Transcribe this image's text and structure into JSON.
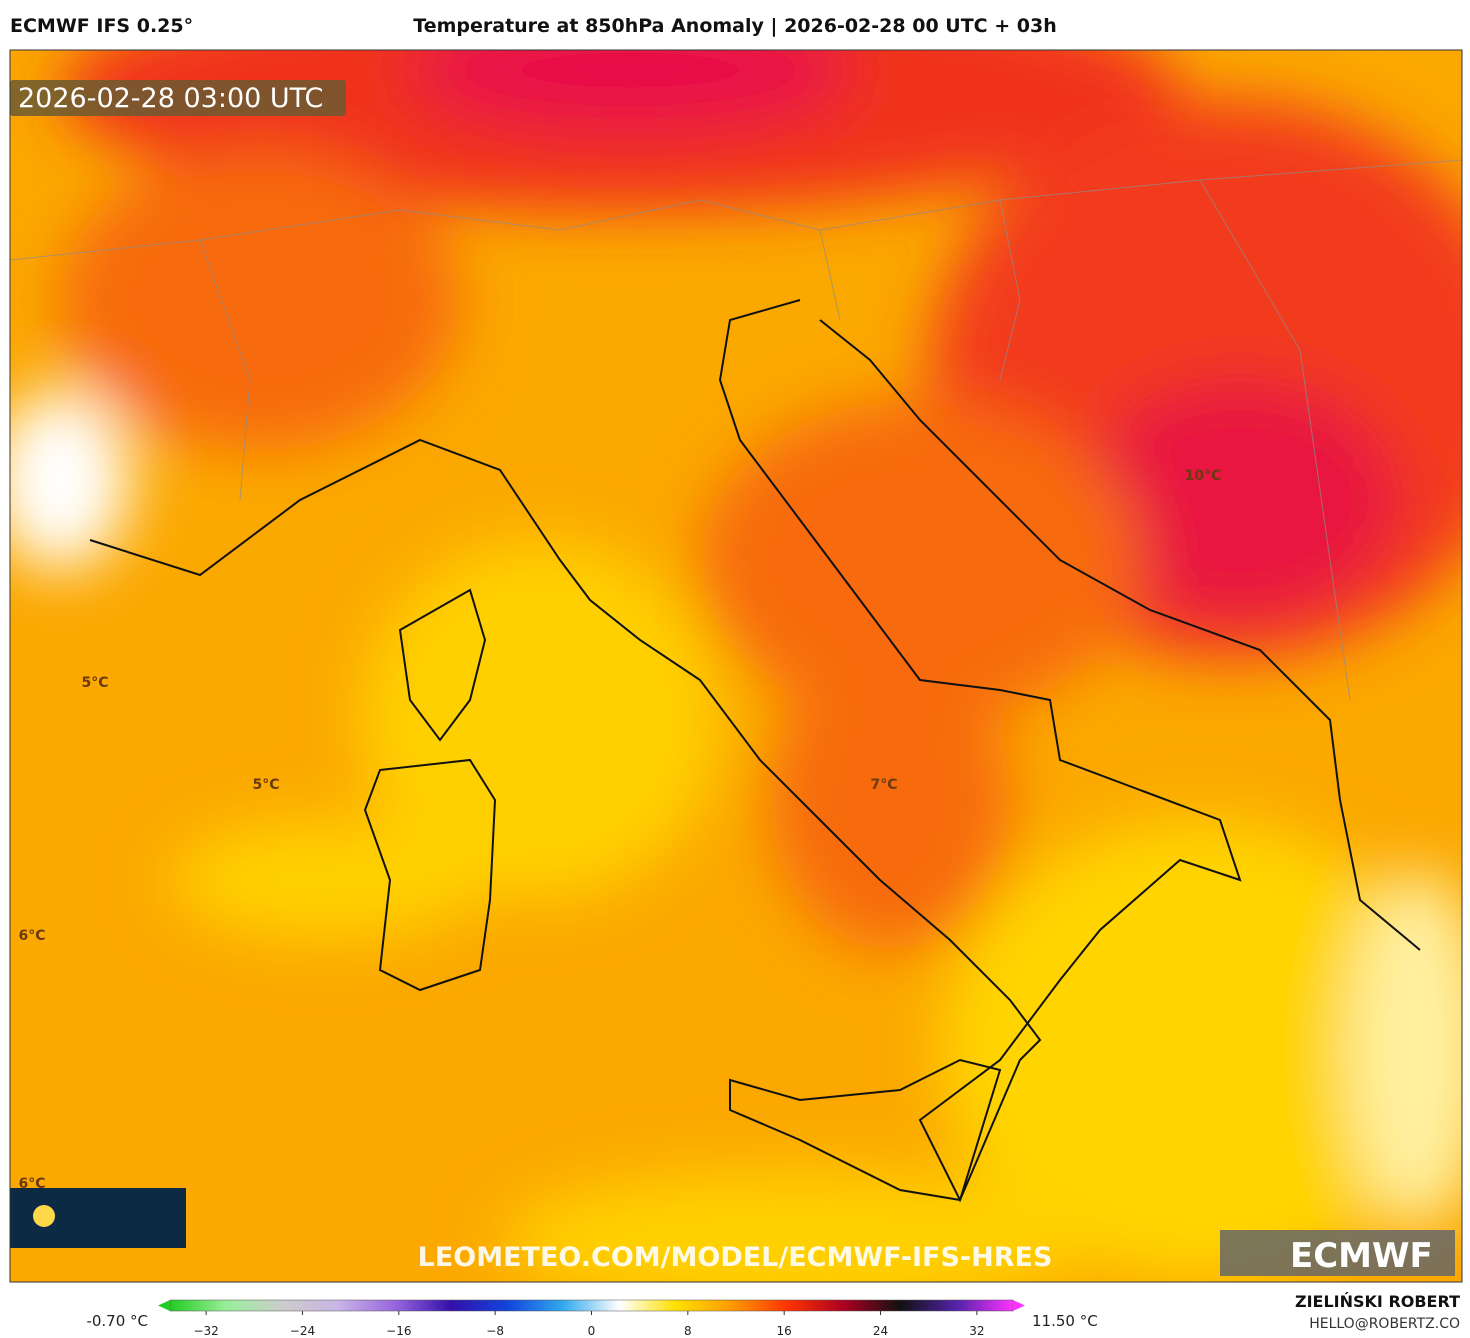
{
  "header": {
    "model": "ECMWF IFS 0.25°",
    "title": "Temperature at 850hPa Anomaly | 2026-02-28 00 UTC + 03h"
  },
  "map": {
    "timestamp": "2026-02-28 03:00 UTC",
    "labels": [
      "5°C",
      "5°C",
      "6°C",
      "6°C",
      "10°C",
      "7°C"
    ],
    "watermark": "LEOMETEO.COM/MODEL/ECMWF-IFS-HRES",
    "logo": "ECMWF"
  },
  "colorbar": {
    "min_label": "-0.70 °C",
    "max_label": "11.50 °C",
    "range": [
      -35,
      35
    ],
    "ticks": [
      {
        "value": -32,
        "label": "−32"
      },
      {
        "value": -24,
        "label": "−24"
      },
      {
        "value": -16,
        "label": "−16"
      },
      {
        "value": -8,
        "label": "−8"
      },
      0,
      8,
      16,
      24,
      32
    ],
    "colors": [
      "#22cc22",
      "#99ee99",
      "#cccccc",
      "#c8b4e6",
      "#9966dd",
      "#3311aa",
      "#1144dd",
      "#33aaee",
      "#ffffff",
      "#ffe000",
      "#ff9900",
      "#ff3300",
      "#aa0022",
      "#111111",
      "#5522aa",
      "#ff33ff"
    ]
  },
  "footer": {
    "author": "ZIELIŃSKI ROBERT",
    "email": "HELLO@ROBERTZ.CO"
  }
}
